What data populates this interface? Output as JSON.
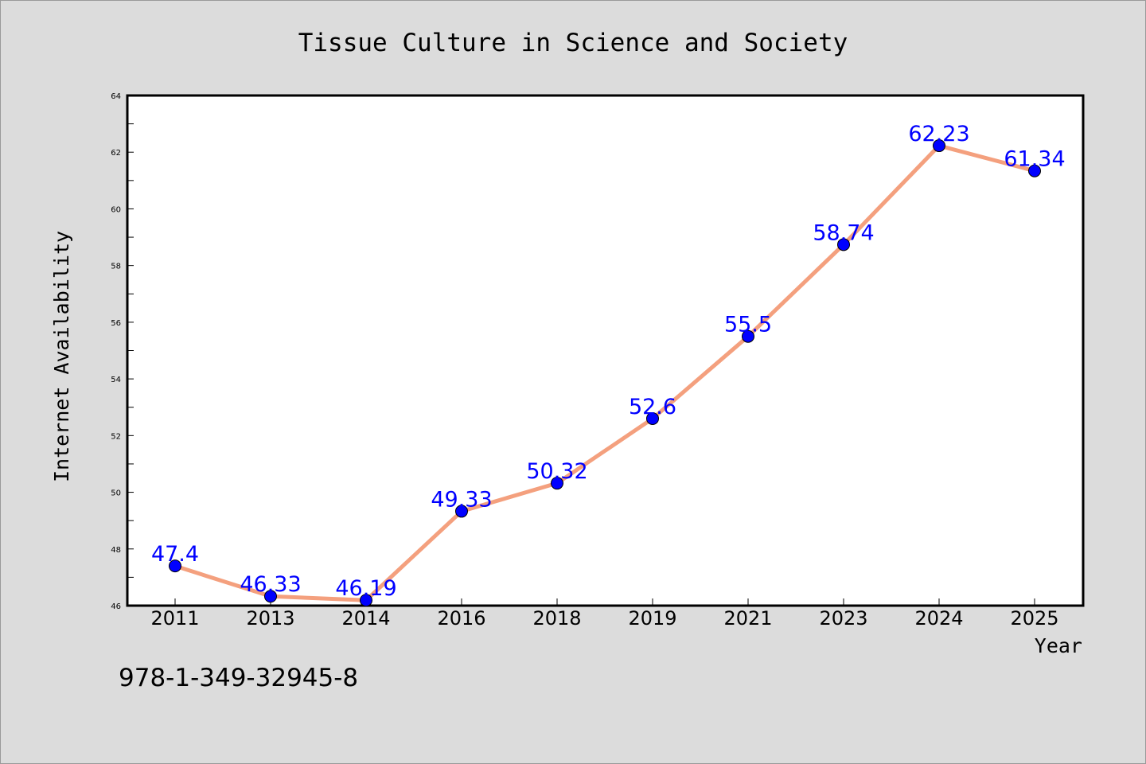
{
  "chart_data": {
    "type": "line",
    "title": "Tissue Culture in Science and Society",
    "xlabel": "Year",
    "ylabel": "Internet Availability",
    "categories": [
      "2011",
      "2013",
      "2014",
      "2016",
      "2018",
      "2019",
      "2021",
      "2023",
      "2024",
      "2025"
    ],
    "values": [
      47.4,
      46.33,
      46.19,
      49.33,
      50.32,
      52.6,
      55.5,
      58.74,
      62.23,
      61.34
    ],
    "data_labels": [
      "47.4",
      "46.33",
      "46.19",
      "49.33",
      "50.32",
      "52.6",
      "55.5",
      "58.74",
      "62.23",
      "61.34"
    ],
    "ylim": [
      46,
      64
    ],
    "yticks": [
      46,
      48,
      50,
      52,
      54,
      56,
      58,
      60,
      62,
      64
    ],
    "grid": false,
    "legend": "none",
    "colors": {
      "line": "#f4a07e",
      "marker": "#0000ff",
      "data_label": "#0000ff",
      "background": "#dcdcdc",
      "plot_background": "#ffffff"
    }
  },
  "footer": {
    "isbn": "978-1-349-32945-8"
  }
}
